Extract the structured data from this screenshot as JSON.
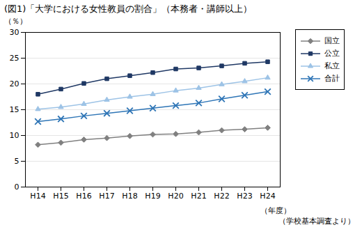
{
  "chart_data": {
    "type": "line",
    "title": "(図1)「大学における女性教員の割合」（本務者・講師以上）",
    "subtitle": "（学校基本調査より）",
    "xlabel": "（年度）",
    "ylabel": "（％）",
    "categories": [
      "H14",
      "H15",
      "H16",
      "H17",
      "H18",
      "H19",
      "H20",
      "H21",
      "H22",
      "H23",
      "H24"
    ],
    "series": [
      {
        "name": "国立",
        "color": "#808080",
        "marker": "diamond",
        "values": [
          8.2,
          8.6,
          9.2,
          9.5,
          9.9,
          10.2,
          10.3,
          10.6,
          11.0,
          11.2,
          11.5
        ]
      },
      {
        "name": "公立",
        "color": "#1f3864",
        "marker": "square",
        "values": [
          18.0,
          19.0,
          20.1,
          21.0,
          21.6,
          22.2,
          22.9,
          23.1,
          23.5,
          24.0,
          24.3
        ]
      },
      {
        "name": "私立",
        "color": "#9dc3e6",
        "marker": "triangle",
        "values": [
          15.1,
          15.5,
          16.1,
          16.9,
          17.5,
          18.0,
          18.7,
          19.2,
          19.9,
          20.5,
          21.2
        ]
      },
      {
        "name": "合計",
        "color": "#2e75b6",
        "marker": "x",
        "values": [
          12.7,
          13.2,
          13.8,
          14.3,
          14.8,
          15.3,
          15.8,
          16.3,
          17.1,
          17.8,
          18.5
        ]
      }
    ],
    "ylim": [
      0,
      30
    ],
    "yticks": [
      0,
      5,
      10,
      15,
      20,
      25,
      30
    ],
    "grid": true,
    "legend": "right"
  }
}
